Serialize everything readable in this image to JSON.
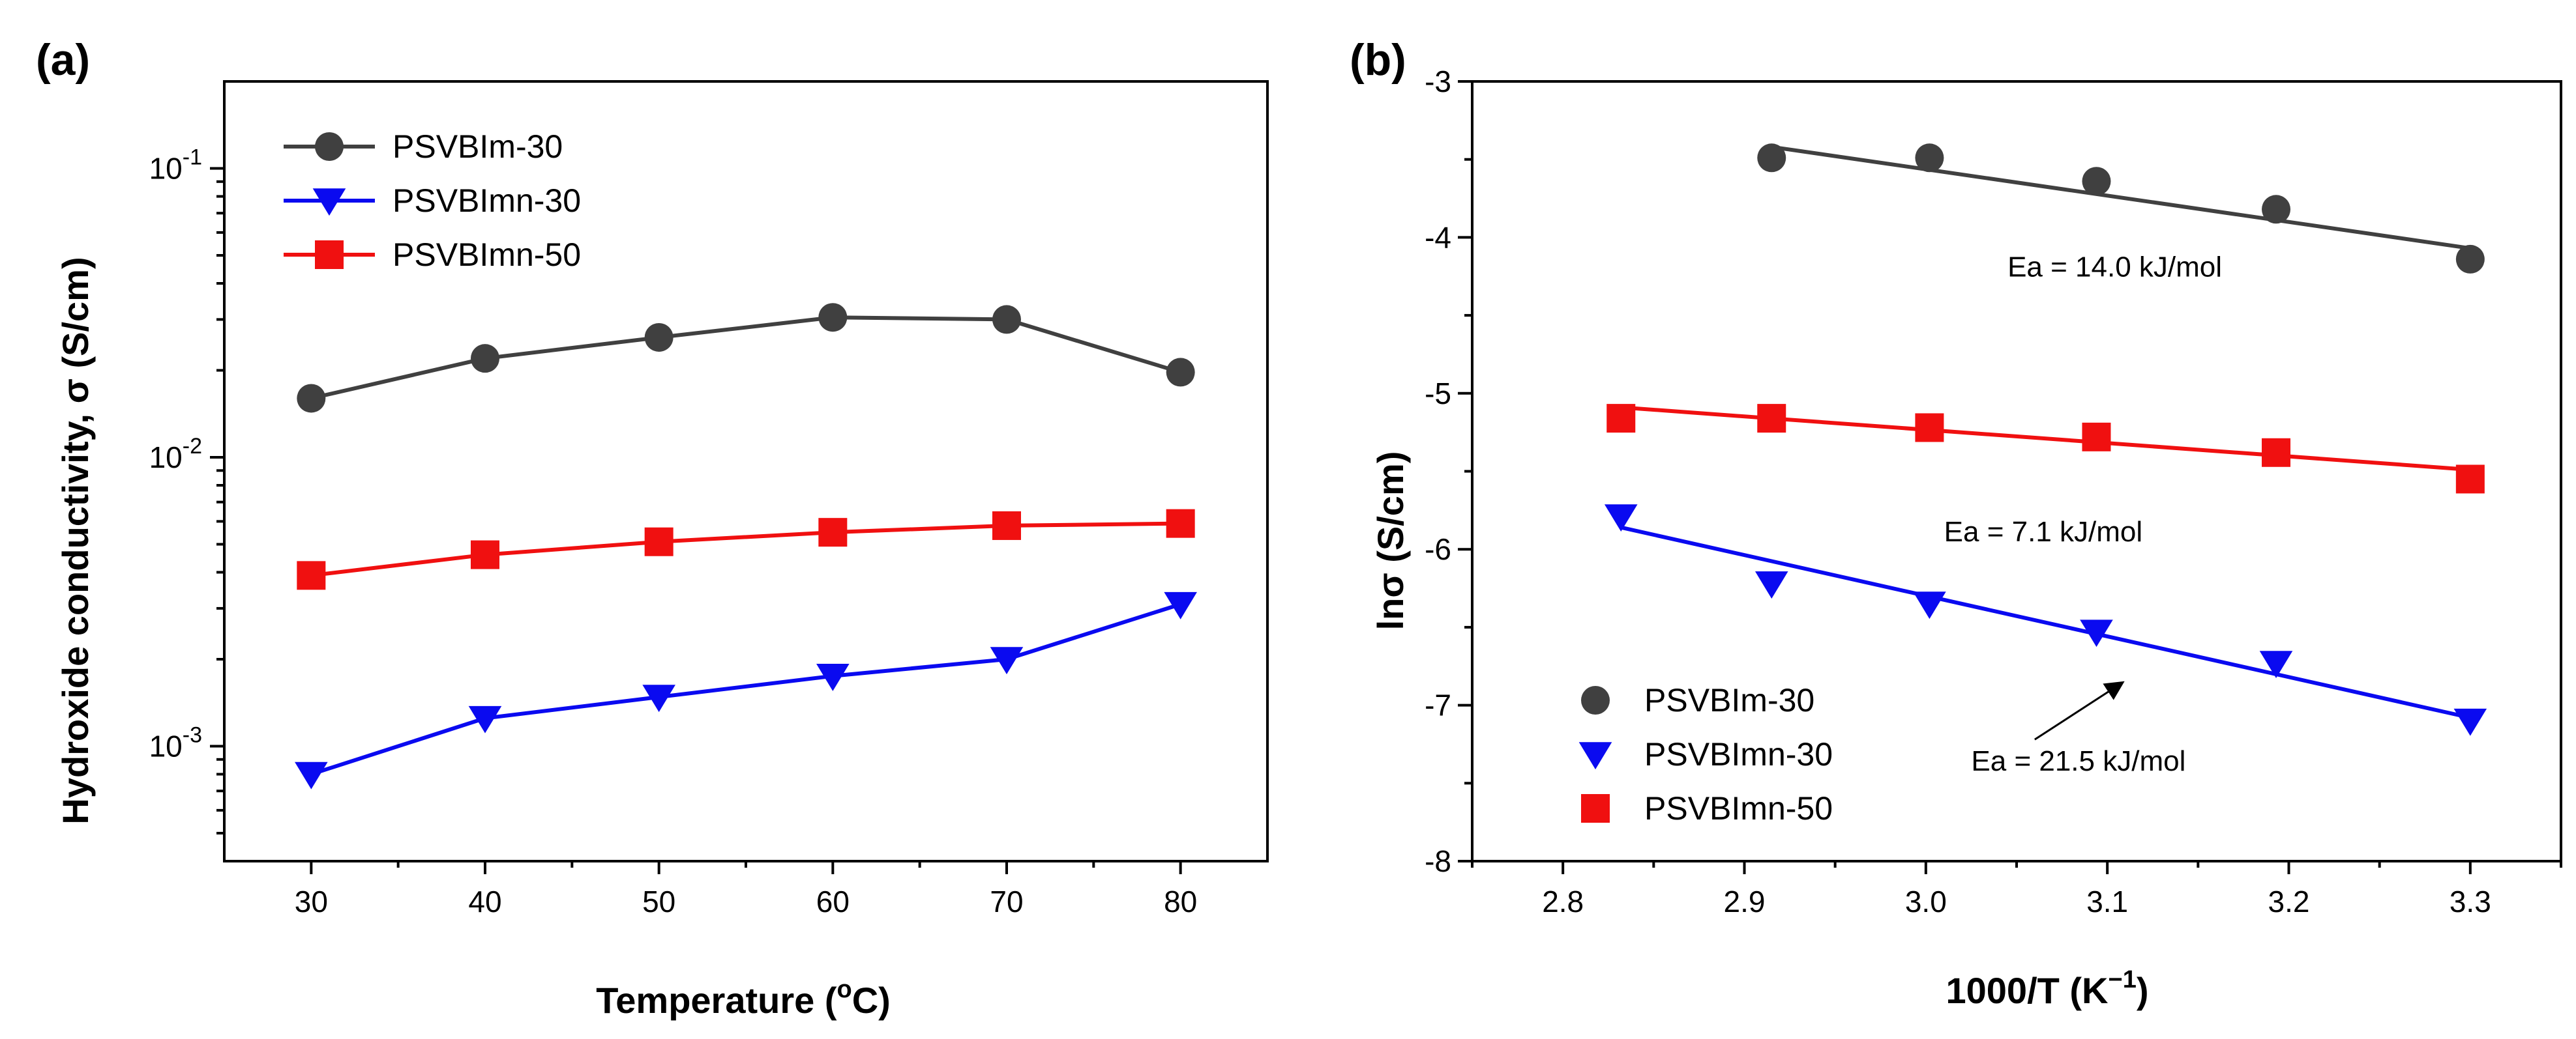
{
  "chart_data": [
    {
      "type": "line",
      "panel_label": "(a)",
      "xlabel_main": "Temperature (",
      "xlabel_sup": "o",
      "xlabel_end": "C)",
      "ylabel": "Hydroxide conductivity, σ (S/cm)",
      "yscale": "log",
      "xlim": [
        25,
        85
      ],
      "ylim": [
        0.0004,
        0.2
      ],
      "x_ticks": [
        30,
        40,
        50,
        60,
        70,
        80
      ],
      "y_ticks": [
        {
          "value": 0.001,
          "base": "10",
          "exp": "-3"
        },
        {
          "value": 0.01,
          "base": "10",
          "exp": "-2"
        },
        {
          "value": 0.1,
          "base": "10",
          "exp": "-1"
        }
      ],
      "legend": "top-left",
      "series": [
        {
          "name": "PSVBIm-30",
          "color": "#404040",
          "marker": "circle",
          "x": [
            30,
            40,
            50,
            60,
            70,
            80
          ],
          "y": [
            0.016,
            0.022,
            0.026,
            0.0305,
            0.03,
            0.0197
          ]
        },
        {
          "name": "PSVBImn-30",
          "color": "#0a0af0",
          "marker": "triangle-down",
          "x": [
            30,
            40,
            50,
            60,
            70,
            80
          ],
          "y": [
            0.0008,
            0.00125,
            0.00148,
            0.00175,
            0.002,
            0.0031
          ]
        },
        {
          "name": "PSVBImn-50",
          "color": "#f01010",
          "marker": "square",
          "x": [
            30,
            40,
            50,
            60,
            70,
            80
          ],
          "y": [
            0.0039,
            0.0046,
            0.0051,
            0.0055,
            0.0058,
            0.0059
          ]
        }
      ]
    },
    {
      "type": "scatter",
      "panel_label": "(b)",
      "xlabel_main": "1000/T (K",
      "xlabel_sup": "−1",
      "xlabel_end": ")",
      "ylabel": "lnσ (S/cm)",
      "xlim": [
        2.75,
        3.35
      ],
      "ylim": [
        -8,
        -3
      ],
      "x_ticks": [
        2.8,
        2.9,
        3.0,
        3.1,
        3.2,
        3.3
      ],
      "x_tick_labels": [
        "2.8",
        "2.9",
        "3.0",
        "3.1",
        "3.2",
        "3.3"
      ],
      "y_ticks": [
        -3,
        -4,
        -5,
        -6,
        -7,
        -8
      ],
      "y_tick_labels": [
        "-3",
        "-4",
        "-5",
        "-6",
        "-7",
        "-8"
      ],
      "legend": "bottom-left",
      "series": [
        {
          "name": "PSVBIm-30",
          "color": "#404040",
          "marker": "circle",
          "x": [
            2.915,
            3.002,
            3.094,
            3.193,
            3.3
          ],
          "y": [
            -3.49,
            -3.49,
            -3.64,
            -3.82,
            -4.14
          ],
          "fit_x": [
            2.915,
            3.3
          ],
          "fit_y": [
            -3.42,
            -4.07
          ]
        },
        {
          "name": "PSVBImn-30",
          "color": "#0a0af0",
          "marker": "triangle-down",
          "x": [
            2.832,
            2.915,
            3.002,
            3.094,
            3.193,
            3.3
          ],
          "y": [
            -5.79,
            -6.22,
            -6.35,
            -6.53,
            -6.73,
            -7.1
          ],
          "fit_x": [
            2.832,
            3.3
          ],
          "fit_y": [
            -5.86,
            -7.08
          ]
        },
        {
          "name": "PSVBImn-50",
          "color": "#f01010",
          "marker": "square",
          "x": [
            2.832,
            2.915,
            3.002,
            3.094,
            3.193,
            3.3
          ],
          "y": [
            -5.16,
            -5.16,
            -5.22,
            -5.28,
            -5.38,
            -5.55
          ],
          "fit_x": [
            2.832,
            3.3
          ],
          "fit_y": [
            -5.09,
            -5.49
          ]
        }
      ],
      "annotations": [
        {
          "text": "Ea = 14.0 kJ/mol",
          "x": 3.045,
          "y": -4.25
        },
        {
          "text": "Ea = 7.1 kJ/mol",
          "x": 3.01,
          "y": -5.95
        },
        {
          "text": "Ea = 21.5 kJ/mol",
          "x": 3.025,
          "y": -7.42
        }
      ],
      "arrow": {
        "from": [
          3.06,
          -7.22
        ],
        "to": [
          3.105,
          -6.88
        ]
      }
    }
  ]
}
